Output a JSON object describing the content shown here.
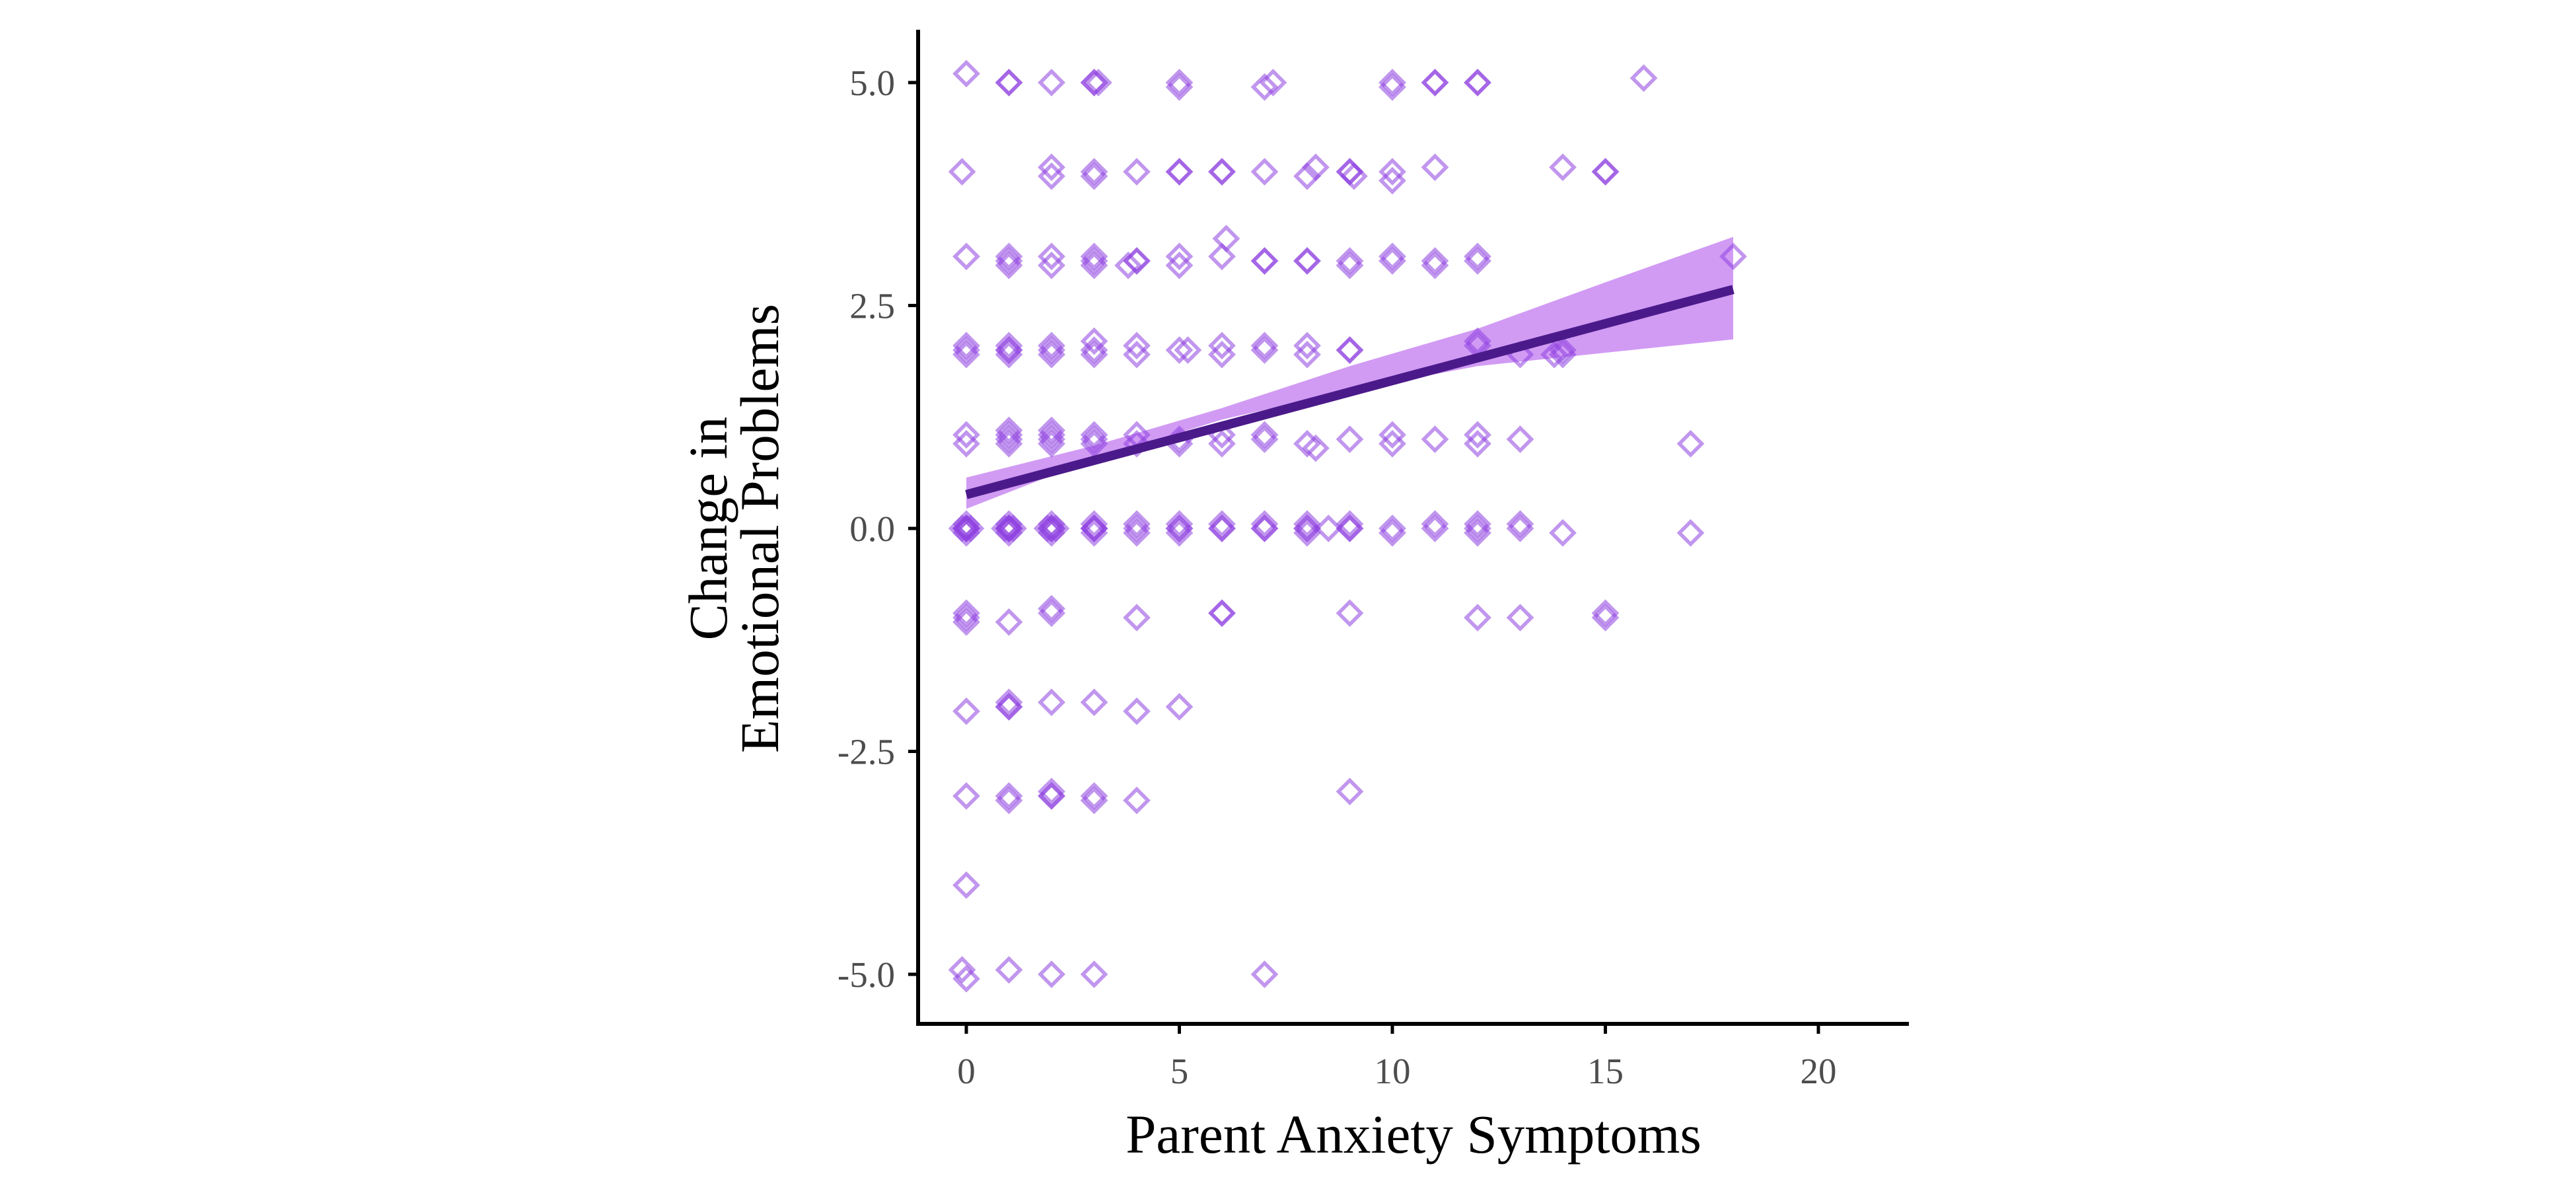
{
  "chart_data": {
    "type": "scatter",
    "xlabel": "Parent Anxiety Symptoms",
    "ylabel_lines": [
      "Change in",
      "Emotional Problems"
    ],
    "xlim": [
      -1.1,
      22
    ],
    "ylim": [
      -5.6,
      5.6
    ],
    "xticks": [
      0,
      5,
      10,
      15,
      20
    ],
    "yticks": [
      -5.0,
      -2.5,
      0.0,
      2.5,
      5.0
    ],
    "xtick_labels": [
      "0",
      "5",
      "10",
      "15",
      "20"
    ],
    "ytick_labels": [
      "-5.0",
      "-2.5",
      "0.0",
      "2.5",
      "5.0"
    ],
    "grid": false,
    "legend": "none",
    "colors": {
      "points": "#8e3fe0",
      "line": "#4b1a8a",
      "band": "#c98af2"
    },
    "series": [
      {
        "kind": "points",
        "marker": "open-diamond",
        "points": [
          [
            0,
            5.1
          ],
          [
            1,
            5
          ],
          [
            1,
            5
          ],
          [
            2,
            5
          ],
          [
            3,
            5
          ],
          [
            3,
            5
          ],
          [
            3.1,
            5
          ],
          [
            5,
            4.95
          ],
          [
            5,
            5
          ],
          [
            7,
            4.95
          ],
          [
            7.2,
            5
          ],
          [
            10,
            5
          ],
          [
            10,
            4.95
          ],
          [
            11,
            5
          ],
          [
            11,
            5
          ],
          [
            12,
            5
          ],
          [
            12,
            5
          ],
          [
            15.9,
            5.05
          ],
          [
            -0.1,
            4
          ],
          [
            2,
            4.05
          ],
          [
            2,
            3.95
          ],
          [
            3,
            3.95
          ],
          [
            3,
            4
          ],
          [
            4,
            4
          ],
          [
            5,
            4
          ],
          [
            5,
            4
          ],
          [
            6,
            4
          ],
          [
            6,
            4
          ],
          [
            7,
            4
          ],
          [
            8,
            3.95
          ],
          [
            8.2,
            4.05
          ],
          [
            9,
            4
          ],
          [
            9,
            4
          ],
          [
            9.1,
            3.95
          ],
          [
            10,
            4
          ],
          [
            10,
            3.9
          ],
          [
            11,
            4.05
          ],
          [
            14,
            4.05
          ],
          [
            15,
            4
          ],
          [
            15,
            4
          ],
          [
            0,
            3.05
          ],
          [
            1,
            3.05
          ],
          [
            1,
            3
          ],
          [
            1,
            2.95
          ],
          [
            2,
            3.05
          ],
          [
            2,
            2.95
          ],
          [
            3,
            3.05
          ],
          [
            3,
            3
          ],
          [
            3,
            2.95
          ],
          [
            4,
            3
          ],
          [
            4,
            3
          ],
          [
            3.8,
            2.95
          ],
          [
            5,
            3.05
          ],
          [
            5,
            2.95
          ],
          [
            6,
            3.05
          ],
          [
            6.1,
            3.25
          ],
          [
            7,
            3
          ],
          [
            7,
            3
          ],
          [
            8,
            3
          ],
          [
            8,
            3
          ],
          [
            9,
            2.95
          ],
          [
            9,
            3
          ],
          [
            10,
            3
          ],
          [
            10,
            3.05
          ],
          [
            11,
            3
          ],
          [
            11,
            2.95
          ],
          [
            12,
            3.05
          ],
          [
            12,
            3
          ],
          [
            18,
            3.05
          ],
          [
            0,
            2.05
          ],
          [
            0,
            1.95
          ],
          [
            0,
            2
          ],
          [
            1,
            2
          ],
          [
            1,
            2
          ],
          [
            1,
            2.05
          ],
          [
            1,
            1.95
          ],
          [
            2,
            2.05
          ],
          [
            2,
            2
          ],
          [
            2,
            1.95
          ],
          [
            3,
            2
          ],
          [
            3,
            1.95
          ],
          [
            3,
            2.1
          ],
          [
            4,
            2.05
          ],
          [
            4,
            1.95
          ],
          [
            5,
            2
          ],
          [
            5.2,
            2
          ],
          [
            6,
            2.05
          ],
          [
            6,
            1.95
          ],
          [
            7,
            2.05
          ],
          [
            7,
            2
          ],
          [
            8,
            2.05
          ],
          [
            8,
            1.95
          ],
          [
            9,
            2
          ],
          [
            9,
            2
          ],
          [
            12,
            2.05
          ],
          [
            12,
            2.1
          ],
          [
            13,
            1.95
          ],
          [
            14,
            1.95
          ],
          [
            14,
            2
          ],
          [
            13.8,
            1.95
          ],
          [
            0,
            1.05
          ],
          [
            0,
            0.95
          ],
          [
            1,
            1.05
          ],
          [
            1,
            1
          ],
          [
            1,
            0.95
          ],
          [
            1,
            1.1
          ],
          [
            2,
            1.05
          ],
          [
            2,
            1
          ],
          [
            2,
            0.95
          ],
          [
            2,
            1.1
          ],
          [
            3,
            1
          ],
          [
            3,
            1.05
          ],
          [
            3,
            0.95
          ],
          [
            4,
            1.05
          ],
          [
            4,
            0.95
          ],
          [
            5,
            1
          ],
          [
            5,
            0.95
          ],
          [
            6,
            1.05
          ],
          [
            6,
            0.95
          ],
          [
            7,
            1
          ],
          [
            7,
            1.05
          ],
          [
            8,
            0.95
          ],
          [
            8.2,
            0.9
          ],
          [
            9,
            1
          ],
          [
            10,
            1.05
          ],
          [
            10,
            0.95
          ],
          [
            11,
            1
          ],
          [
            12,
            1.05
          ],
          [
            12,
            0.95
          ],
          [
            13,
            1
          ],
          [
            17,
            0.95
          ],
          [
            0,
            0
          ],
          [
            0,
            0
          ],
          [
            0,
            0
          ],
          [
            0,
            0
          ],
          [
            0,
            0.05
          ],
          [
            0,
            -0.05
          ],
          [
            0.1,
            0
          ],
          [
            -0.1,
            0
          ],
          [
            1,
            0
          ],
          [
            1,
            0
          ],
          [
            1,
            0
          ],
          [
            1,
            0
          ],
          [
            1,
            0.05
          ],
          [
            1,
            -0.05
          ],
          [
            0.9,
            0
          ],
          [
            1.1,
            0
          ],
          [
            2,
            0
          ],
          [
            2,
            0
          ],
          [
            2,
            0
          ],
          [
            2,
            0.05
          ],
          [
            2,
            -0.05
          ],
          [
            1.9,
            0
          ],
          [
            2.1,
            0
          ],
          [
            3,
            0
          ],
          [
            3,
            0
          ],
          [
            3,
            0
          ],
          [
            3,
            0.05
          ],
          [
            3,
            -0.05
          ],
          [
            4,
            0
          ],
          [
            4,
            0.05
          ],
          [
            4,
            -0.05
          ],
          [
            5,
            0
          ],
          [
            5,
            0
          ],
          [
            5,
            0.05
          ],
          [
            5,
            -0.05
          ],
          [
            6,
            0
          ],
          [
            6,
            0
          ],
          [
            6,
            0.05
          ],
          [
            7,
            0
          ],
          [
            7,
            0
          ],
          [
            7,
            0.05
          ],
          [
            8,
            0
          ],
          [
            8,
            0
          ],
          [
            8,
            0.05
          ],
          [
            8,
            -0.05
          ],
          [
            8.5,
            0
          ],
          [
            9,
            0
          ],
          [
            9,
            0
          ],
          [
            9,
            0.05
          ],
          [
            10,
            0
          ],
          [
            10,
            -0.05
          ],
          [
            11,
            0
          ],
          [
            11,
            0.05
          ],
          [
            12,
            0
          ],
          [
            12,
            0.05
          ],
          [
            12,
            -0.05
          ],
          [
            13,
            0
          ],
          [
            13,
            0.05
          ],
          [
            14,
            -0.05
          ],
          [
            17,
            -0.05
          ],
          [
            0,
            -1
          ],
          [
            0,
            -1.05
          ],
          [
            0,
            -0.95
          ],
          [
            1,
            -1.05
          ],
          [
            2,
            -0.95
          ],
          [
            2,
            -0.9
          ],
          [
            4,
            -1
          ],
          [
            6,
            -0.95
          ],
          [
            6,
            -0.95
          ],
          [
            9,
            -0.95
          ],
          [
            12,
            -1
          ],
          [
            13,
            -1
          ],
          [
            15,
            -1
          ],
          [
            15,
            -0.95
          ],
          [
            0,
            -2.05
          ],
          [
            1,
            -2
          ],
          [
            1,
            -2
          ],
          [
            1,
            -1.95
          ],
          [
            2,
            -1.95
          ],
          [
            3,
            -1.95
          ],
          [
            4,
            -2.05
          ],
          [
            5,
            -2
          ],
          [
            0,
            -3
          ],
          [
            1,
            -3.05
          ],
          [
            1,
            -3
          ],
          [
            2,
            -3
          ],
          [
            2,
            -3
          ],
          [
            2,
            -2.95
          ],
          [
            3,
            -3
          ],
          [
            3,
            -3.05
          ],
          [
            4,
            -3.05
          ],
          [
            9,
            -2.95
          ],
          [
            0,
            -4
          ],
          [
            -0.1,
            -4.95
          ],
          [
            0,
            -5.05
          ],
          [
            1,
            -4.95
          ],
          [
            2,
            -5
          ],
          [
            3,
            -5
          ],
          [
            7,
            -5
          ]
        ]
      },
      {
        "kind": "fit-line",
        "x": [
          0,
          18
        ],
        "y": [
          0.38,
          2.68
        ]
      },
      {
        "kind": "confidence-band",
        "x": [
          0,
          3,
          6,
          9,
          12,
          15,
          18
        ],
        "lower": [
          0.22,
          0.78,
          1.22,
          1.55,
          1.82,
          1.97,
          2.12
        ],
        "upper": [
          0.57,
          0.93,
          1.35,
          1.82,
          2.24,
          2.76,
          3.27
        ]
      }
    ]
  }
}
